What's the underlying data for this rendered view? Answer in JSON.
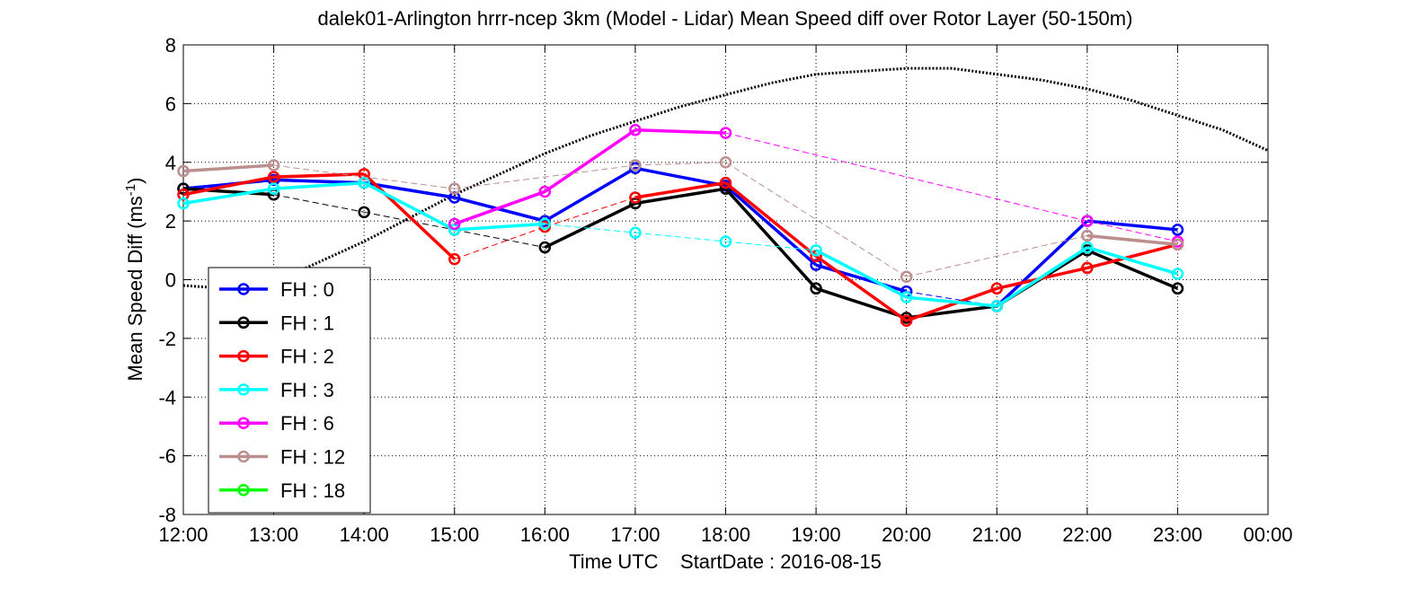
{
  "chart_data": {
    "type": "line",
    "title": "dalek01-Arlington hrrr-ncep 3km (Model - Lidar) Mean Speed diff over Rotor Layer (50-150m)",
    "xlabel": "Time UTC    StartDate : 2016-08-15",
    "ylabel_main": "Mean Speed Diff (ms",
    "ylabel_sup": "-1",
    "ylabel_close": ")",
    "x_tick_labels": [
      "12:00",
      "13:00",
      "14:00",
      "15:00",
      "16:00",
      "17:00",
      "18:00",
      "19:00",
      "20:00",
      "21:00",
      "22:00",
      "23:00",
      "00:00"
    ],
    "y_tick_labels": [
      "8",
      "6",
      "4",
      "2",
      "0",
      "-2",
      "-4",
      "-6",
      "-8"
    ],
    "xlim": [
      12,
      24
    ],
    "ylim": [
      -8,
      8
    ],
    "grid": true,
    "legend_position": "bottom-left",
    "series": [
      {
        "name": "FH : 0",
        "color": "#0000ff",
        "x": [
          12,
          13,
          14,
          15,
          16,
          17,
          18,
          19,
          20,
          21,
          22,
          23
        ],
        "y": [
          3.1,
          3.4,
          3.3,
          2.8,
          2.0,
          3.8,
          3.2,
          0.5,
          -0.4,
          -0.9,
          2.0,
          1.7
        ],
        "gaps_after": [
          8
        ]
      },
      {
        "name": "FH : 1",
        "color": "#000000",
        "x": [
          12,
          13,
          14,
          15,
          16,
          17,
          18,
          19,
          20,
          21,
          22,
          23
        ],
        "y": [
          3.1,
          2.9,
          2.3,
          1.7,
          1.1,
          2.6,
          3.1,
          -0.3,
          -1.3,
          -0.9,
          1.0,
          -0.3
        ],
        "gaps_after": [
          1,
          2,
          3
        ]
      },
      {
        "name": "FH : 2",
        "color": "#ff0000",
        "x": [
          12,
          13,
          14,
          15,
          16,
          17,
          18,
          19,
          20,
          21,
          22,
          23
        ],
        "y": [
          2.9,
          3.5,
          3.6,
          0.7,
          1.8,
          2.8,
          3.3,
          0.8,
          -1.4,
          -0.3,
          0.4,
          1.2
        ],
        "gaps_after": [
          3,
          4
        ]
      },
      {
        "name": "FH : 3",
        "color": "#00ffff",
        "x": [
          12,
          13,
          14,
          15,
          16,
          17,
          18,
          19,
          20,
          21,
          22,
          23
        ],
        "y": [
          2.6,
          3.1,
          3.3,
          1.7,
          1.9,
          1.6,
          1.3,
          1.0,
          -0.6,
          -0.9,
          1.1,
          0.2
        ],
        "gaps_after": [
          4,
          5,
          6
        ]
      },
      {
        "name": "FH : 6",
        "color": "#ff00ff",
        "x": [
          15,
          16,
          17,
          18,
          22,
          23
        ],
        "y": [
          1.9,
          3.0,
          5.1,
          5.0,
          2.0,
          1.3
        ],
        "gaps_after": [
          3,
          4
        ]
      },
      {
        "name": "FH : 12",
        "color": "#bc8f8f",
        "x": [
          12,
          13,
          15,
          17,
          18,
          20,
          22,
          23
        ],
        "y": [
          3.7,
          3.9,
          3.1,
          3.9,
          4.0,
          0.1,
          1.5,
          1.2
        ],
        "gaps_after": [
          1,
          2,
          3,
          4,
          5
        ]
      },
      {
        "name": "FH : 18",
        "color": "#00ff00",
        "x": [],
        "y": [],
        "gaps_after": []
      }
    ],
    "reference_curve": {
      "color": "#000000",
      "x": [
        12,
        12.5,
        13,
        13.5,
        14,
        14.5,
        15,
        15.5,
        16,
        16.5,
        17,
        17.5,
        18,
        18.5,
        19,
        19.5,
        20,
        20.5,
        21,
        21.5,
        22,
        22.5,
        23,
        23.5,
        24
      ],
      "y": [
        -0.2,
        -0.3,
        -0.1,
        0.6,
        1.3,
        2.1,
        2.9,
        3.6,
        4.3,
        4.9,
        5.4,
        5.9,
        6.3,
        6.7,
        7.0,
        7.1,
        7.2,
        7.2,
        7.0,
        6.8,
        6.5,
        6.1,
        5.6,
        5.1,
        4.4
      ]
    }
  }
}
